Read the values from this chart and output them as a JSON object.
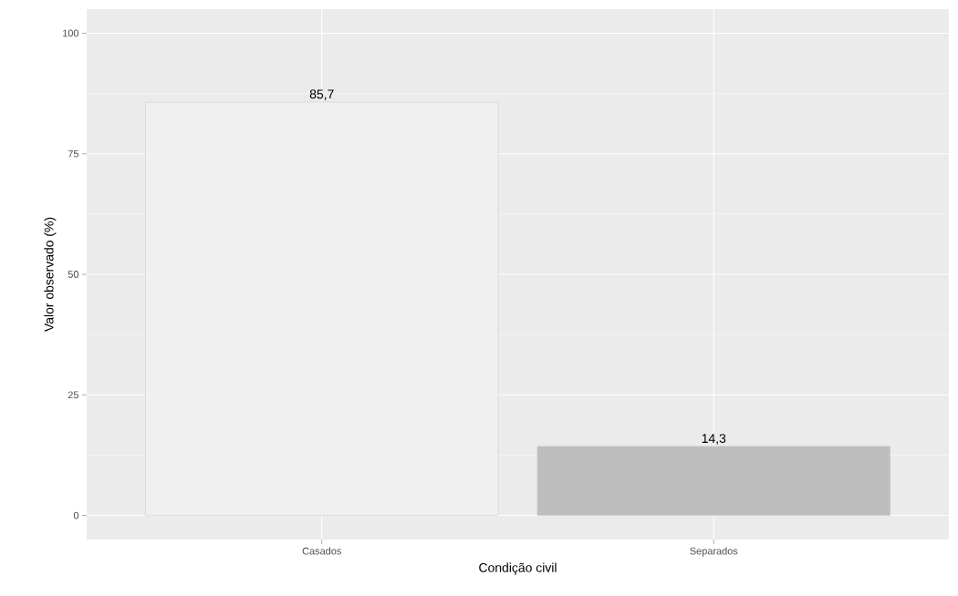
{
  "chart_data": {
    "type": "bar",
    "xlabel": "Condição civil",
    "ylabel": "Valor observado (%)",
    "categories": [
      "Casados",
      "Separados"
    ],
    "values": [
      85.7,
      14.3
    ],
    "colors": [
      "#f0f0f0",
      "#bebebe"
    ],
    "value_labels": [
      "85,7",
      "14,3"
    ],
    "ylim": [
      -5,
      105
    ],
    "yticks": [
      0,
      25,
      50,
      75,
      100
    ],
    "grid": true
  }
}
